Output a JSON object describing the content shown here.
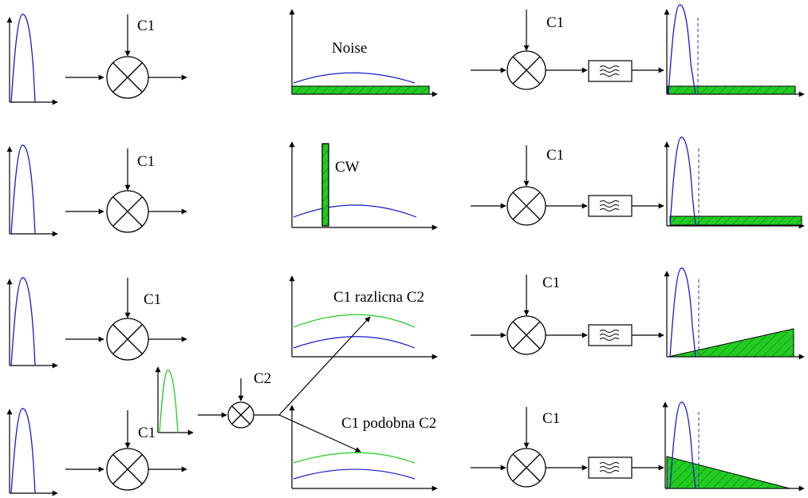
{
  "labels": {
    "c1": "C1",
    "c2": "C2",
    "noise": "Noise",
    "cw": "CW",
    "c1_different_c2": "C1 razlicna C2",
    "c1_similar_c2": "C1 podobna C2"
  },
  "colors": {
    "pulse_blue": "#1a1acc",
    "pulse_green": "#22cc22",
    "fill_green": "#22cc22",
    "line": "#000000",
    "dashed": "#333399"
  },
  "rows": [
    {
      "id": "noise",
      "middle_label": "noise",
      "output_noise": "flat"
    },
    {
      "id": "cw",
      "middle_label": "cw",
      "output_noise": "flat"
    },
    {
      "id": "different",
      "middle_label": "c1_different_c2",
      "output_noise": "rising"
    },
    {
      "id": "similar",
      "middle_label": "c1_similar_c2",
      "output_noise": "falling"
    }
  ]
}
